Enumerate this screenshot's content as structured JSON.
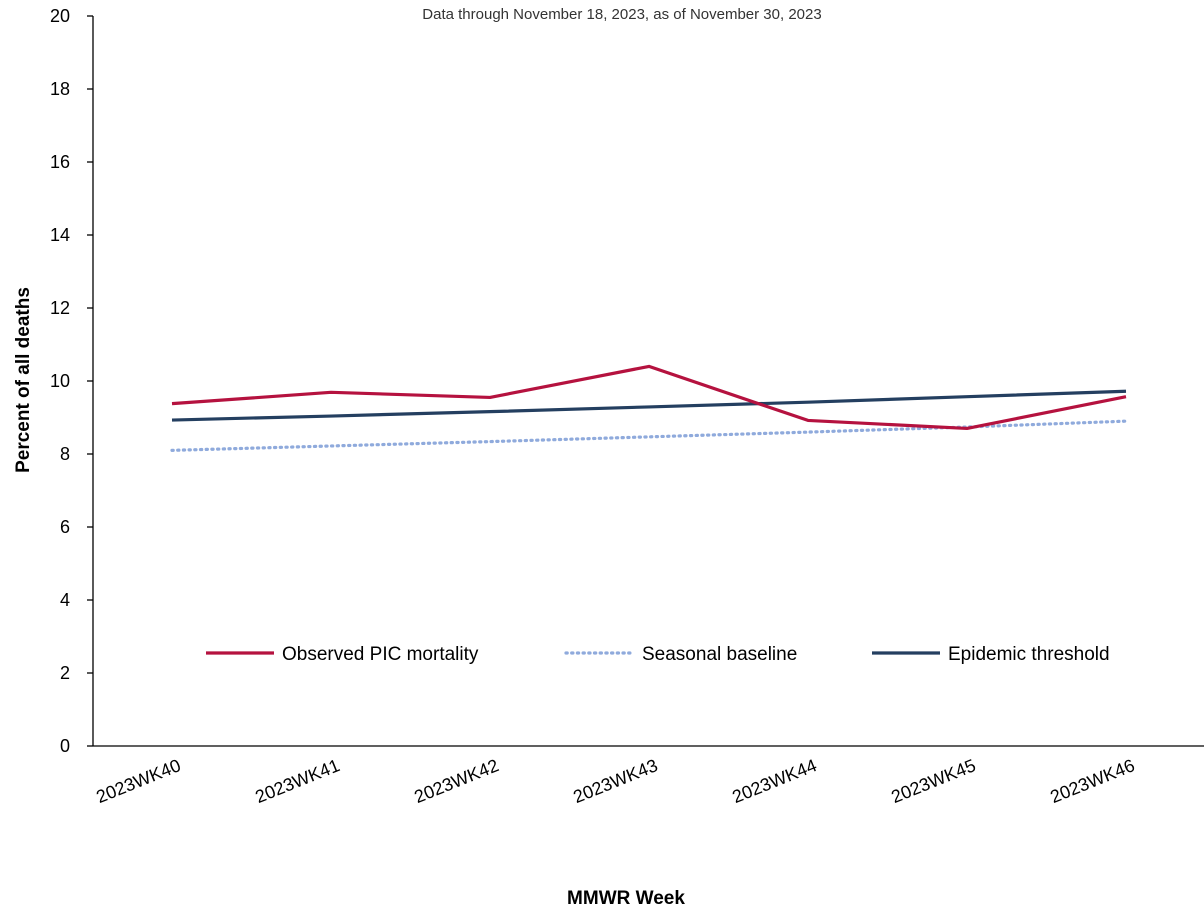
{
  "chart_data": {
    "type": "line",
    "subtitle": "Data through November 18, 2023, as of November 30, 2023",
    "xlabel": "MMWR Week",
    "ylabel": "Percent of all deaths",
    "ylim": [
      0,
      20
    ],
    "yticks": [
      0,
      2,
      4,
      6,
      8,
      10,
      12,
      14,
      16,
      18,
      20
    ],
    "categories": [
      "2023WK40",
      "2023WK41",
      "2023WK42",
      "2023WK43",
      "2023WK44",
      "2023WK45",
      "2023WK46"
    ],
    "grid": false,
    "legend_position": "bottom-center-inside",
    "series": [
      {
        "name": "Observed PIC mortality",
        "values": [
          9.38,
          9.69,
          9.55,
          10.4,
          8.92,
          8.7,
          9.57
        ],
        "color": "#b5123f",
        "style": "solid"
      },
      {
        "name": "Seasonal baseline",
        "values": [
          8.1,
          8.22,
          8.34,
          8.47,
          8.6,
          8.74,
          8.9
        ],
        "color": "#8faadc",
        "style": "dotted"
      },
      {
        "name": "Epidemic threshold",
        "values": [
          8.93,
          9.04,
          9.16,
          9.29,
          9.42,
          9.57,
          9.72
        ],
        "color": "#243f60",
        "style": "solid"
      }
    ]
  }
}
